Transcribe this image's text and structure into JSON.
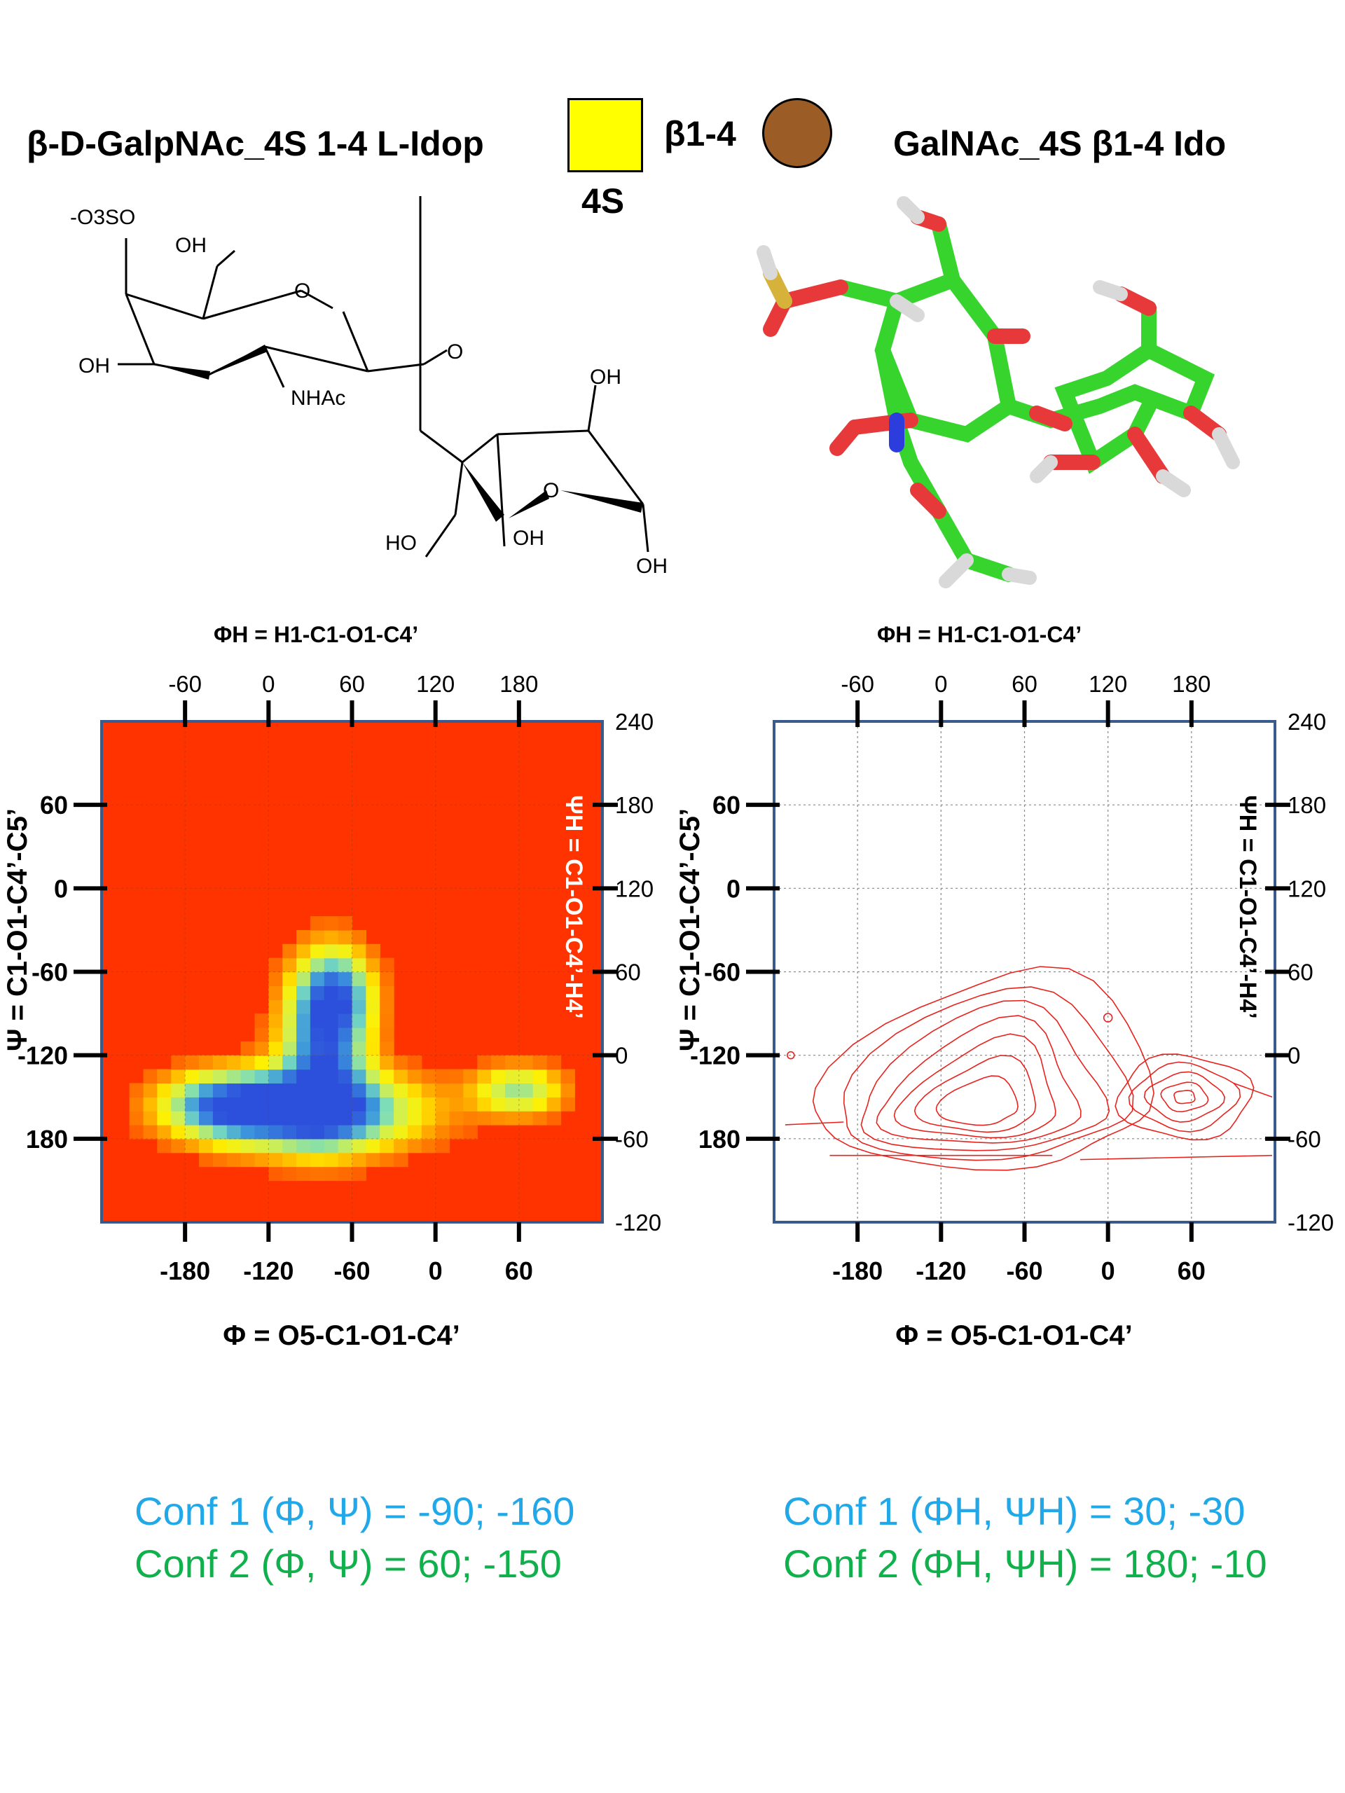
{
  "header": {
    "left_title": "β-D-GalpNAc_4S 1-4 L-Idop",
    "linkage": "β1-4",
    "box_label": "4S",
    "right_title": "GalNAc_4S β1-4 Ido",
    "colors": {
      "galnac_square": "#ffff00",
      "ido_circle": "#9c5c26"
    }
  },
  "structure": {
    "labels": [
      "-O3SO",
      "OH",
      "O",
      "OH",
      "NHAc",
      "O",
      "OH",
      "O",
      "HO",
      "OH",
      "OH"
    ]
  },
  "conformations": {
    "left": {
      "conf1": "Conf 1 (Φ, Ψ) = -90;  -160",
      "conf2": "Conf 2 (Φ, Ψ) =  60;  -150"
    },
    "right": {
      "conf1": "Conf 1 (ΦH, ΨH) = 30; -30",
      "conf2": "Conf 2 (ΦH, ΨH) = 180; -10"
    }
  },
  "colors": {
    "conf1": "#21a8e8",
    "conf2": "#10b14c",
    "frame": "#3a5a8c",
    "background_heat": "#ff3300",
    "contour": "#e8231e"
  },
  "chart_data": [
    {
      "type": "heatmap",
      "title": "",
      "xlabel": "Φ = O5-C1-O1-C4’",
      "ylabel": "Ψ = C1-O1-C4’-C5’",
      "x2label": "ΦH = H1-C1-O1-C4’",
      "y2label": "ΨH = C1-O1-C4’-H4’",
      "xlim": [
        -240,
        120
      ],
      "ylim": [
        -240,
        120
      ],
      "x_ticks": [
        "-180",
        "-120",
        "-60",
        "0",
        "60"
      ],
      "y_ticks": [
        "60",
        "0",
        "-60",
        "-120",
        "180"
      ],
      "x2_ticks": [
        "-60",
        "0",
        "60",
        "120",
        "180"
      ],
      "y2_ticks": [
        "240",
        "180",
        "120",
        "60",
        "0",
        "-60",
        "-120"
      ],
      "grid": true,
      "minima": [
        {
          "label": "Conf 1",
          "phi": -90,
          "psi": -160
        },
        {
          "label": "Conf 2",
          "phi": 60,
          "psi": -150
        }
      ]
    },
    {
      "type": "contour",
      "title": "",
      "xlabel": "Φ = O5-C1-O1-C4’",
      "ylabel": "Ψ = C1-O1-C4’-C5’",
      "x2label": "ΦH = H1-C1-O1-C4’",
      "y2label": "ΨH = C1-O1-C4’-H4’",
      "xlim": [
        -240,
        120
      ],
      "ylim": [
        -240,
        120
      ],
      "x_ticks": [
        "-180",
        "-120",
        "-60",
        "0",
        "60"
      ],
      "y_ticks": [
        "60",
        "0",
        "-60",
        "-120",
        "180"
      ],
      "x2_ticks": [
        "-60",
        "0",
        "60",
        "120",
        "180"
      ],
      "y2_ticks": [
        "240",
        "180",
        "120",
        "60",
        "0",
        "-60",
        "-120"
      ],
      "grid": true,
      "minima": [
        {
          "label": "Conf 1",
          "phi": -90,
          "psi": -160
        },
        {
          "label": "Conf 2",
          "phi": 60,
          "psi": -150
        }
      ]
    }
  ]
}
